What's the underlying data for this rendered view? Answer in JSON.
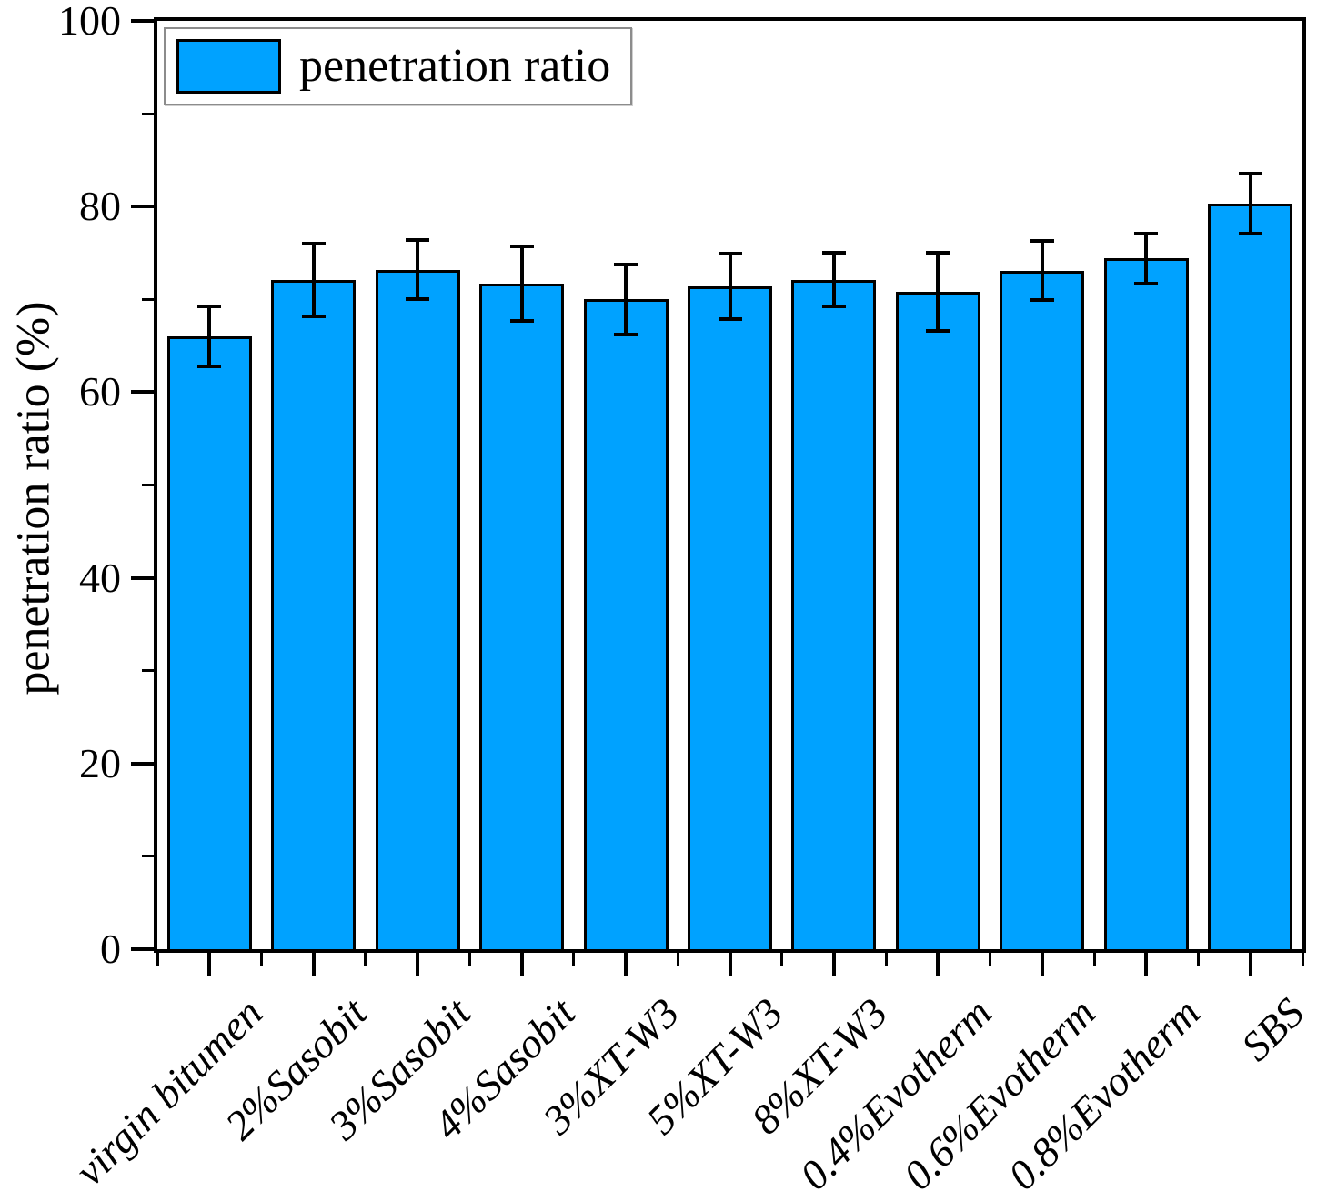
{
  "chart_data": {
    "type": "bar",
    "title": "",
    "legend_label": "penetration ratio",
    "legend_position": "top-left",
    "xlabel": "",
    "ylabel": "penetration ratio (%)",
    "ylim": [
      0,
      100
    ],
    "y_major_ticks": [
      0,
      20,
      40,
      60,
      80,
      100
    ],
    "y_minor_ticks": [
      10,
      30,
      50,
      70,
      90
    ],
    "grid": false,
    "x_tick_label_rotation_deg": 45,
    "x_tick_label_style": "italic",
    "categories": [
      "virgin bitumen",
      "2%Sasobit",
      "3%Sasobit",
      "4%Sasobit",
      "3%XT-W3",
      "5%XT-W3",
      "8%XT-W3",
      "0.4%Evotherm",
      "0.6%Evotherm",
      "0.8%Evotherm",
      "SBS"
    ],
    "series": [
      {
        "name": "penetration ratio",
        "values": [
          66.0,
          72.1,
          73.2,
          71.7,
          70.0,
          71.4,
          72.1,
          70.8,
          73.1,
          74.4,
          80.3
        ],
        "errors": [
          3.2,
          3.9,
          3.2,
          4.0,
          3.8,
          3.5,
          2.9,
          4.2,
          3.2,
          2.7,
          3.2
        ]
      }
    ],
    "bar_color": "#00A2FF",
    "bar_edge_color": "#000000",
    "error_bar_color": "#000000",
    "axis_color": "#000000",
    "background_color": "#FFFFFF"
  }
}
